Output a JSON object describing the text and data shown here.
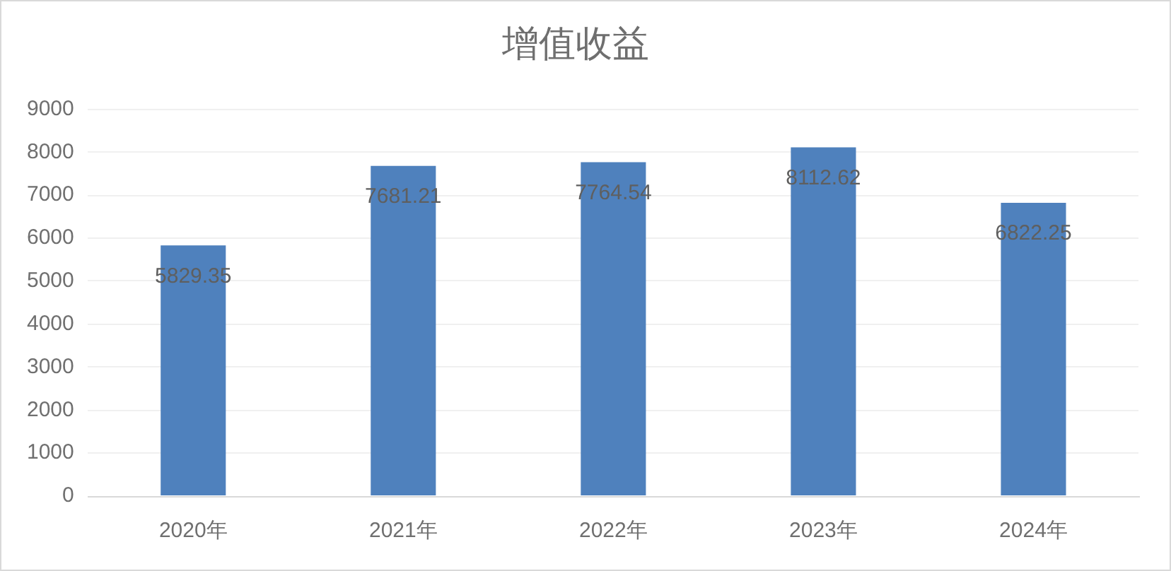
{
  "chart_data": {
    "type": "bar",
    "title": "增值收益",
    "categories": [
      "2020年",
      "2021年",
      "2022年",
      "2023年",
      "2024年"
    ],
    "values": [
      5829.35,
      7681.21,
      7764.54,
      8112.62,
      6822.25
    ],
    "color": "#4f81bd",
    "ylim": [
      0,
      9000
    ],
    "yticks": [
      0,
      1000,
      2000,
      3000,
      4000,
      5000,
      6000,
      7000,
      8000,
      9000
    ],
    "grid": "y",
    "data_labels": true
  }
}
